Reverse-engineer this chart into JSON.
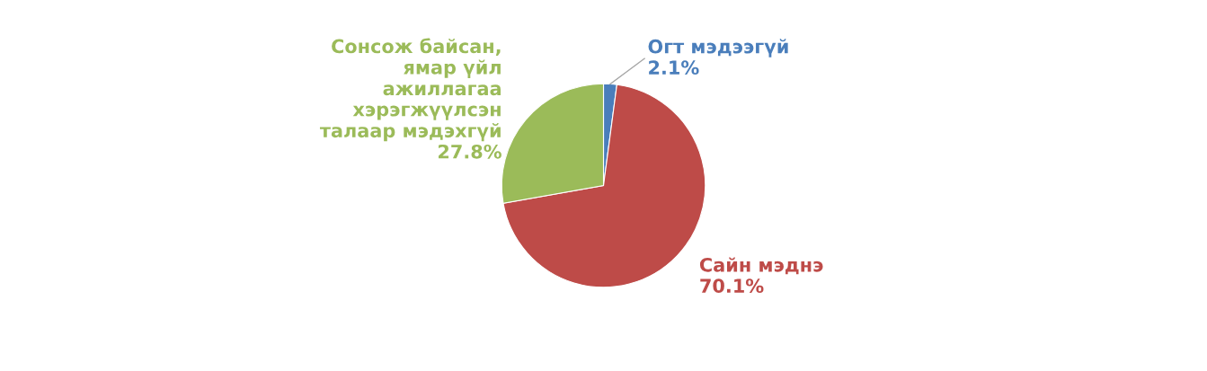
{
  "chart_data": {
    "type": "pie",
    "categories": [
      "Огт мэдээгүй",
      "Сайн мэднэ",
      "Сонсож байсан, ямар үйл ажиллагаа хэрэгжүүлсэн талаар мэдэхгүй"
    ],
    "values": [
      2.1,
      70.1,
      27.8
    ],
    "colors": [
      "#4a7ebb",
      "#be4b48",
      "#9bbb59"
    ],
    "value_labels": [
      "2.1%",
      "70.1%",
      "27.8%"
    ],
    "legend": false
  }
}
